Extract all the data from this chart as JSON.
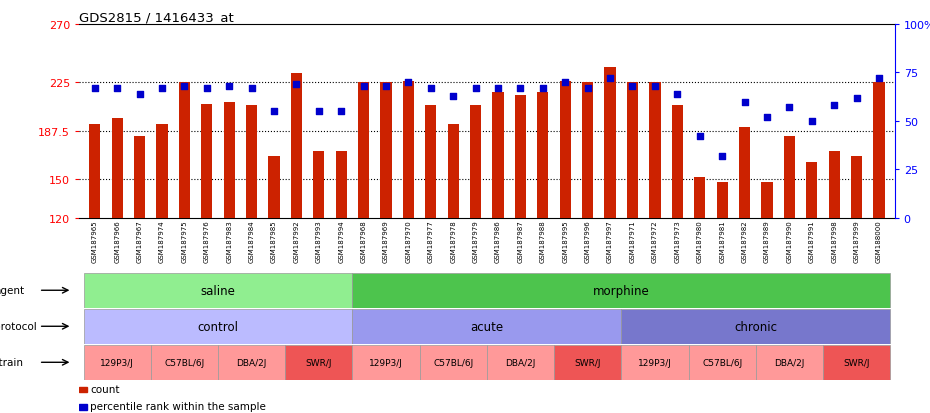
{
  "title": "GDS2815 / 1416433_at",
  "samples": [
    "GSM187965",
    "GSM187966",
    "GSM187967",
    "GSM187974",
    "GSM187975",
    "GSM187976",
    "GSM187983",
    "GSM187984",
    "GSM187985",
    "GSM187992",
    "GSM187993",
    "GSM187994",
    "GSM187968",
    "GSM187969",
    "GSM187970",
    "GSM187977",
    "GSM187978",
    "GSM187979",
    "GSM187986",
    "GSM187987",
    "GSM187988",
    "GSM187995",
    "GSM187996",
    "GSM187997",
    "GSM187971",
    "GSM187972",
    "GSM187973",
    "GSM187980",
    "GSM187981",
    "GSM187982",
    "GSM187989",
    "GSM187990",
    "GSM187991",
    "GSM187998",
    "GSM187999",
    "GSM188000"
  ],
  "counts": [
    193,
    197,
    183,
    193,
    225,
    208,
    210,
    207,
    168,
    232,
    172,
    172,
    225,
    225,
    226,
    207,
    193,
    207,
    217,
    215,
    217,
    226,
    225,
    237,
    225,
    225,
    207,
    152,
    148,
    190,
    148,
    183,
    163,
    172,
    168,
    225
  ],
  "percentiles": [
    67,
    67,
    64,
    67,
    68,
    67,
    68,
    67,
    55,
    69,
    55,
    55,
    68,
    68,
    70,
    67,
    63,
    67,
    67,
    67,
    67,
    70,
    67,
    72,
    68,
    68,
    64,
    42,
    32,
    60,
    52,
    57,
    50,
    58,
    62,
    72
  ],
  "y_min": 120,
  "y_max": 270,
  "y_ticks": [
    120,
    150,
    187.5,
    225,
    270
  ],
  "y_tick_labels": [
    "120",
    "150",
    "187.5",
    "225",
    "270"
  ],
  "right_y_ticks": [
    0,
    25,
    50,
    75,
    100
  ],
  "right_y_labels": [
    "0",
    "25",
    "50",
    "75",
    "100%"
  ],
  "bar_color": "#CC2200",
  "dot_color": "#0000CC",
  "agent_saline_color": "#90EE90",
  "agent_morphine_color": "#4DC44D",
  "protocol_control_color": "#BBBBFF",
  "protocol_acute_color": "#9999EE",
  "protocol_chronic_color": "#7777CC",
  "strain_light_color": "#FF9999",
  "strain_dark_color": "#EE5555"
}
